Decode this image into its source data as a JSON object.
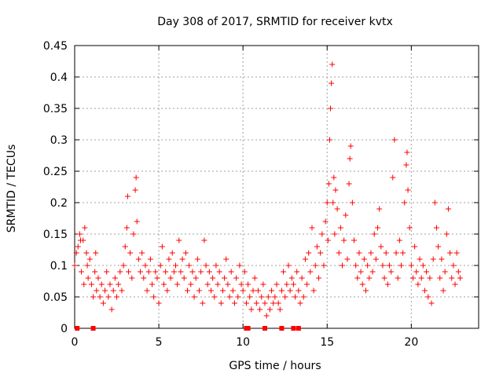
{
  "chart_data": {
    "type": "scatter",
    "title": "Day 308 of 2017, SRMTID for receiver kvtx",
    "xlabel": "GPS time / hours",
    "ylabel": "SRMTID / TECUs",
    "xlim": [
      0,
      24
    ],
    "ylim": [
      0,
      0.45
    ],
    "xticks": [
      0,
      5,
      10,
      15,
      20
    ],
    "xtick_labels": [
      "0",
      "5",
      "10",
      "15",
      "20"
    ],
    "yticks": [
      0,
      0.05,
      0.1,
      0.15,
      0.2,
      0.25,
      0.3,
      0.35,
      0.4,
      0.45
    ],
    "ytick_labels": [
      "0",
      "0.05",
      "0.1",
      "0.15",
      "0.2",
      "0.25",
      "0.3",
      "0.35",
      "0.4",
      "0.45"
    ],
    "grid": true,
    "marker": "plus",
    "marker_color": "#ff0000",
    "zero_points_x": [
      0.15,
      1.1,
      10.2,
      10.3,
      11.3,
      12.3,
      13.0,
      13.3
    ],
    "series": [
      {
        "name": "SRMTID",
        "points": [
          [
            0.0,
            0.1
          ],
          [
            0.1,
            0.12
          ],
          [
            0.2,
            0.13
          ],
          [
            0.3,
            0.15
          ],
          [
            0.35,
            0.14
          ],
          [
            0.4,
            0.09
          ],
          [
            0.5,
            0.14
          ],
          [
            0.55,
            0.07
          ],
          [
            0.6,
            0.16
          ],
          [
            0.7,
            0.12
          ],
          [
            0.75,
            0.1
          ],
          [
            0.8,
            0.08
          ],
          [
            0.9,
            0.11
          ],
          [
            1.0,
            0.07
          ],
          [
            1.1,
            0.05
          ],
          [
            1.2,
            0.09
          ],
          [
            1.25,
            0.12
          ],
          [
            1.3,
            0.06
          ],
          [
            1.4,
            0.08
          ],
          [
            1.5,
            0.05
          ],
          [
            1.6,
            0.07
          ],
          [
            1.7,
            0.04
          ],
          [
            1.8,
            0.06
          ],
          [
            1.9,
            0.09
          ],
          [
            2.0,
            0.05
          ],
          [
            2.1,
            0.07
          ],
          [
            2.2,
            0.03
          ],
          [
            2.3,
            0.06
          ],
          [
            2.4,
            0.08
          ],
          [
            2.5,
            0.05
          ],
          [
            2.6,
            0.07
          ],
          [
            2.7,
            0.09
          ],
          [
            2.8,
            0.06
          ],
          [
            2.9,
            0.1
          ],
          [
            3.0,
            0.13
          ],
          [
            3.1,
            0.16
          ],
          [
            3.15,
            0.21
          ],
          [
            3.2,
            0.09
          ],
          [
            3.3,
            0.12
          ],
          [
            3.4,
            0.08
          ],
          [
            3.5,
            0.15
          ],
          [
            3.6,
            0.22
          ],
          [
            3.65,
            0.24
          ],
          [
            3.7,
            0.17
          ],
          [
            3.8,
            0.11
          ],
          [
            3.9,
            0.09
          ],
          [
            4.0,
            0.12
          ],
          [
            4.1,
            0.08
          ],
          [
            4.2,
            0.1
          ],
          [
            4.3,
            0.06
          ],
          [
            4.4,
            0.09
          ],
          [
            4.5,
            0.11
          ],
          [
            4.6,
            0.07
          ],
          [
            4.7,
            0.05
          ],
          [
            4.8,
            0.09
          ],
          [
            4.9,
            0.08
          ],
          [
            5.0,
            0.04
          ],
          [
            5.1,
            0.1
          ],
          [
            5.2,
            0.13
          ],
          [
            5.3,
            0.07
          ],
          [
            5.4,
            0.09
          ],
          [
            5.5,
            0.06
          ],
          [
            5.6,
            0.11
          ],
          [
            5.7,
            0.08
          ],
          [
            5.8,
            0.12
          ],
          [
            5.9,
            0.09
          ],
          [
            6.0,
            0.1
          ],
          [
            6.1,
            0.07
          ],
          [
            6.2,
            0.14
          ],
          [
            6.3,
            0.09
          ],
          [
            6.4,
            0.11
          ],
          [
            6.5,
            0.08
          ],
          [
            6.6,
            0.12
          ],
          [
            6.7,
            0.06
          ],
          [
            6.8,
            0.1
          ],
          [
            6.9,
            0.07
          ],
          [
            7.0,
            0.09
          ],
          [
            7.1,
            0.05
          ],
          [
            7.2,
            0.08
          ],
          [
            7.3,
            0.11
          ],
          [
            7.4,
            0.06
          ],
          [
            7.5,
            0.09
          ],
          [
            7.6,
            0.04
          ],
          [
            7.7,
            0.14
          ],
          [
            7.8,
            0.1
          ],
          [
            7.9,
            0.07
          ],
          [
            8.0,
            0.09
          ],
          [
            8.1,
            0.06
          ],
          [
            8.2,
            0.08
          ],
          [
            8.3,
            0.05
          ],
          [
            8.4,
            0.1
          ],
          [
            8.5,
            0.07
          ],
          [
            8.6,
            0.09
          ],
          [
            8.7,
            0.04
          ],
          [
            8.8,
            0.06
          ],
          [
            8.9,
            0.08
          ],
          [
            9.0,
            0.11
          ],
          [
            9.1,
            0.07
          ],
          [
            9.2,
            0.05
          ],
          [
            9.3,
            0.09
          ],
          [
            9.4,
            0.06
          ],
          [
            9.5,
            0.04
          ],
          [
            9.6,
            0.08
          ],
          [
            9.7,
            0.05
          ],
          [
            9.8,
            0.1
          ],
          [
            9.9,
            0.07
          ],
          [
            10.0,
            0.06
          ],
          [
            10.1,
            0.09
          ],
          [
            10.2,
            0.04
          ],
          [
            10.3,
            0.07
          ],
          [
            10.4,
            0.05
          ],
          [
            10.5,
            0.03
          ],
          [
            10.6,
            0.06
          ],
          [
            10.7,
            0.08
          ],
          [
            10.8,
            0.04
          ],
          [
            10.9,
            0.06
          ],
          [
            11.0,
            0.03
          ],
          [
            11.1,
            0.05
          ],
          [
            11.2,
            0.07
          ],
          [
            11.3,
            0.04
          ],
          [
            11.4,
            0.02
          ],
          [
            11.5,
            0.05
          ],
          [
            11.6,
            0.03
          ],
          [
            11.7,
            0.06
          ],
          [
            11.8,
            0.04
          ],
          [
            11.9,
            0.05
          ],
          [
            12.0,
            0.07
          ],
          [
            12.1,
            0.04
          ],
          [
            12.2,
            0.03
          ],
          [
            12.3,
            0.06
          ],
          [
            12.4,
            0.09
          ],
          [
            12.5,
            0.05
          ],
          [
            12.6,
            0.07
          ],
          [
            12.7,
            0.1
          ],
          [
            12.8,
            0.06
          ],
          [
            12.9,
            0.08
          ],
          [
            13.0,
            0.07
          ],
          [
            13.1,
            0.05
          ],
          [
            13.2,
            0.09
          ],
          [
            13.3,
            0.06
          ],
          [
            13.4,
            0.04
          ],
          [
            13.5,
            0.08
          ],
          [
            13.6,
            0.05
          ],
          [
            13.7,
            0.11
          ],
          [
            13.8,
            0.07
          ],
          [
            13.9,
            0.12
          ],
          [
            14.0,
            0.09
          ],
          [
            14.1,
            0.16
          ],
          [
            14.2,
            0.06
          ],
          [
            14.3,
            0.1
          ],
          [
            14.4,
            0.13
          ],
          [
            14.5,
            0.08
          ],
          [
            14.6,
            0.12
          ],
          [
            14.7,
            0.15
          ],
          [
            14.8,
            0.1
          ],
          [
            14.9,
            0.17
          ],
          [
            15.0,
            0.2
          ],
          [
            15.05,
            0.14
          ],
          [
            15.1,
            0.23
          ],
          [
            15.15,
            0.3
          ],
          [
            15.2,
            0.35
          ],
          [
            15.25,
            0.39
          ],
          [
            15.3,
            0.42
          ],
          [
            15.35,
            0.2
          ],
          [
            15.4,
            0.24
          ],
          [
            15.45,
            0.15
          ],
          [
            15.5,
            0.22
          ],
          [
            15.6,
            0.19
          ],
          [
            15.7,
            0.12
          ],
          [
            15.8,
            0.16
          ],
          [
            15.9,
            0.1
          ],
          [
            16.0,
            0.14
          ],
          [
            16.1,
            0.18
          ],
          [
            16.2,
            0.11
          ],
          [
            16.3,
            0.23
          ],
          [
            16.35,
            0.27
          ],
          [
            16.4,
            0.29
          ],
          [
            16.5,
            0.2
          ],
          [
            16.6,
            0.14
          ],
          [
            16.7,
            0.1
          ],
          [
            16.8,
            0.08
          ],
          [
            16.9,
            0.12
          ],
          [
            17.0,
            0.09
          ],
          [
            17.1,
            0.07
          ],
          [
            17.2,
            0.11
          ],
          [
            17.3,
            0.06
          ],
          [
            17.4,
            0.1
          ],
          [
            17.5,
            0.08
          ],
          [
            17.6,
            0.12
          ],
          [
            17.7,
            0.09
          ],
          [
            17.8,
            0.15
          ],
          [
            17.9,
            0.11
          ],
          [
            18.0,
            0.16
          ],
          [
            18.1,
            0.19
          ],
          [
            18.2,
            0.13
          ],
          [
            18.3,
            0.1
          ],
          [
            18.4,
            0.08
          ],
          [
            18.5,
            0.12
          ],
          [
            18.6,
            0.07
          ],
          [
            18.7,
            0.1
          ],
          [
            18.8,
            0.09
          ],
          [
            18.9,
            0.24
          ],
          [
            19.0,
            0.3
          ],
          [
            19.1,
            0.12
          ],
          [
            19.2,
            0.08
          ],
          [
            19.3,
            0.14
          ],
          [
            19.4,
            0.1
          ],
          [
            19.5,
            0.12
          ],
          [
            19.6,
            0.2
          ],
          [
            19.7,
            0.26
          ],
          [
            19.75,
            0.28
          ],
          [
            19.8,
            0.22
          ],
          [
            19.9,
            0.16
          ],
          [
            20.0,
            0.1
          ],
          [
            20.1,
            0.08
          ],
          [
            20.2,
            0.13
          ],
          [
            20.3,
            0.09
          ],
          [
            20.4,
            0.07
          ],
          [
            20.5,
            0.11
          ],
          [
            20.6,
            0.08
          ],
          [
            20.7,
            0.1
          ],
          [
            20.8,
            0.06
          ],
          [
            20.9,
            0.09
          ],
          [
            21.0,
            0.05
          ],
          [
            21.1,
            0.08
          ],
          [
            21.2,
            0.04
          ],
          [
            21.3,
            0.11
          ],
          [
            21.4,
            0.2
          ],
          [
            21.5,
            0.16
          ],
          [
            21.6,
            0.13
          ],
          [
            21.7,
            0.08
          ],
          [
            21.8,
            0.11
          ],
          [
            21.9,
            0.06
          ],
          [
            22.0,
            0.09
          ],
          [
            22.1,
            0.15
          ],
          [
            22.2,
            0.19
          ],
          [
            22.3,
            0.12
          ],
          [
            22.4,
            0.08
          ],
          [
            22.5,
            0.1
          ],
          [
            22.6,
            0.07
          ],
          [
            22.7,
            0.12
          ],
          [
            22.8,
            0.09
          ],
          [
            22.9,
            0.08
          ]
        ]
      }
    ]
  }
}
